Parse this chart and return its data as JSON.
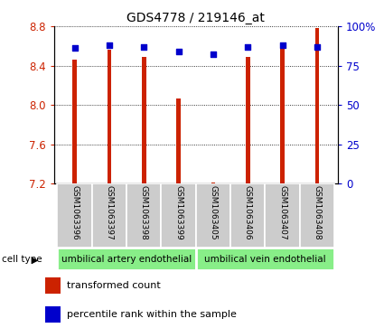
{
  "title": "GDS4778 / 219146_at",
  "samples": [
    "GSM1063396",
    "GSM1063397",
    "GSM1063398",
    "GSM1063399",
    "GSM1063405",
    "GSM1063406",
    "GSM1063407",
    "GSM1063408"
  ],
  "bar_heights": [
    8.46,
    8.56,
    8.49,
    8.07,
    7.215,
    8.49,
    8.57,
    8.78
  ],
  "percentile_values": [
    86,
    88,
    87,
    84,
    82,
    87,
    88,
    87
  ],
  "ylim": [
    7.2,
    8.8
  ],
  "yticks": [
    7.2,
    7.6,
    8.0,
    8.4,
    8.8
  ],
  "right_yticks": [
    0,
    25,
    50,
    75,
    100
  ],
  "right_ylim": [
    0,
    100
  ],
  "bar_color": "#cc2200",
  "dot_color": "#0000cc",
  "bar_bottom": 7.2,
  "cell_types": [
    {
      "label": "umbilical artery endothelial",
      "start": 0,
      "end": 3
    },
    {
      "label": "umbilical vein endothelial",
      "start": 4,
      "end": 7
    }
  ],
  "group_bg_color": "#88ee88",
  "sample_bg_color": "#cccccc",
  "legend_items": [
    {
      "color": "#cc2200",
      "label": "transformed count"
    },
    {
      "color": "#0000cc",
      "label": "percentile rank within the sample"
    }
  ],
  "cell_type_label": "cell type",
  "bar_width": 0.12
}
